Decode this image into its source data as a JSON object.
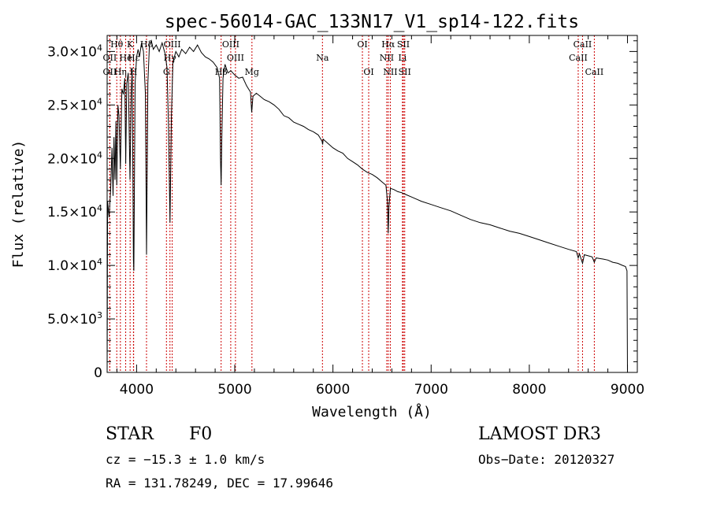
{
  "chart_data": {
    "type": "line",
    "title": "spec-56014-GAC_133N17_V1_sp14-122.fits",
    "xlabel": "Wavelength (Å)",
    "ylabel": "Flux (relative)",
    "xlim": [
      3700,
      9100
    ],
    "ylim": [
      0,
      31500
    ],
    "x_ticks": [
      {
        "value": 4000,
        "label": "4000"
      },
      {
        "value": 5000,
        "label": "5000"
      },
      {
        "value": 6000,
        "label": "6000"
      },
      {
        "value": 7000,
        "label": "7000"
      },
      {
        "value": 8000,
        "label": "8000"
      },
      {
        "value": 9000,
        "label": "9000"
      }
    ],
    "y_ticks": [
      {
        "value": 0,
        "mant": "0",
        "exp": ""
      },
      {
        "value": 5000,
        "mant": "5.0×10",
        "exp": "3"
      },
      {
        "value": 10000,
        "mant": "1.0×10",
        "exp": "4"
      },
      {
        "value": 15000,
        "mant": "1.5×10",
        "exp": "4"
      },
      {
        "value": 20000,
        "mant": "2.0×10",
        "exp": "4"
      },
      {
        "value": 25000,
        "mant": "2.5×10",
        "exp": "4"
      },
      {
        "value": 30000,
        "mant": "3.0×10",
        "exp": "4"
      }
    ],
    "series": [
      {
        "name": "spectrum",
        "color": "#000000",
        "points": [
          [
            3700,
            0
          ],
          [
            3705,
            16000
          ],
          [
            3720,
            14500
          ],
          [
            3735,
            17000
          ],
          [
            3750,
            21000
          ],
          [
            3760,
            16500
          ],
          [
            3770,
            22000
          ],
          [
            3780,
            18000
          ],
          [
            3790,
            23500
          ],
          [
            3798,
            17500
          ],
          [
            3810,
            25000
          ],
          [
            3820,
            24000
          ],
          [
            3835,
            19000
          ],
          [
            3850,
            26500
          ],
          [
            3865,
            26000
          ],
          [
            3880,
            27500
          ],
          [
            3889,
            19500
          ],
          [
            3900,
            27000
          ],
          [
            3915,
            28000
          ],
          [
            3933,
            18000
          ],
          [
            3945,
            26000
          ],
          [
            3955,
            28500
          ],
          [
            3968,
            10500
          ],
          [
            3972,
            9500
          ],
          [
            3985,
            27000
          ],
          [
            4000,
            29500
          ],
          [
            4015,
            30200
          ],
          [
            4030,
            29500
          ],
          [
            4050,
            30800
          ],
          [
            4070,
            30000
          ],
          [
            4090,
            26000
          ],
          [
            4101,
            11000
          ],
          [
            4115,
            27000
          ],
          [
            4130,
            30500
          ],
          [
            4150,
            31000
          ],
          [
            4170,
            30200
          ],
          [
            4200,
            30600
          ],
          [
            4230,
            30000
          ],
          [
            4260,
            30800
          ],
          [
            4290,
            29800
          ],
          [
            4310,
            28500
          ],
          [
            4325,
            23000
          ],
          [
            4340,
            14000
          ],
          [
            4355,
            24000
          ],
          [
            4370,
            29000
          ],
          [
            4400,
            30000
          ],
          [
            4430,
            29500
          ],
          [
            4460,
            30200
          ],
          [
            4500,
            29800
          ],
          [
            4540,
            30400
          ],
          [
            4580,
            30000
          ],
          [
            4620,
            30600
          ],
          [
            4660,
            29900
          ],
          [
            4700,
            29500
          ],
          [
            4740,
            29300
          ],
          [
            4780,
            29000
          ],
          [
            4820,
            28500
          ],
          [
            4845,
            27500
          ],
          [
            4855,
            20000
          ],
          [
            4861,
            17500
          ],
          [
            4868,
            22000
          ],
          [
            4880,
            27500
          ],
          [
            4900,
            28800
          ],
          [
            4930,
            28000
          ],
          [
            4960,
            28200
          ],
          [
            5000,
            27800
          ],
          [
            5040,
            27500
          ],
          [
            5080,
            27600
          ],
          [
            5120,
            26800
          ],
          [
            5160,
            26200
          ],
          [
            5172,
            24300
          ],
          [
            5185,
            25800
          ],
          [
            5220,
            26100
          ],
          [
            5260,
            25800
          ],
          [
            5300,
            25500
          ],
          [
            5350,
            25300
          ],
          [
            5400,
            25000
          ],
          [
            5450,
            24600
          ],
          [
            5500,
            24000
          ],
          [
            5550,
            23800
          ],
          [
            5600,
            23400
          ],
          [
            5650,
            23200
          ],
          [
            5700,
            23000
          ],
          [
            5750,
            22700
          ],
          [
            5800,
            22500
          ],
          [
            5850,
            22200
          ],
          [
            5890,
            21600
          ],
          [
            5895,
            21300
          ],
          [
            5900,
            21800
          ],
          [
            5950,
            21400
          ],
          [
            6000,
            21000
          ],
          [
            6050,
            20700
          ],
          [
            6100,
            20500
          ],
          [
            6150,
            20000
          ],
          [
            6200,
            19700
          ],
          [
            6250,
            19400
          ],
          [
            6300,
            19000
          ],
          [
            6350,
            18700
          ],
          [
            6400,
            18500
          ],
          [
            6450,
            18200
          ],
          [
            6500,
            17800
          ],
          [
            6540,
            17500
          ],
          [
            6555,
            16000
          ],
          [
            6563,
            13000
          ],
          [
            6570,
            15500
          ],
          [
            6585,
            17200
          ],
          [
            6620,
            17100
          ],
          [
            6660,
            16900
          ],
          [
            6700,
            16800
          ],
          [
            6750,
            16600
          ],
          [
            6800,
            16400
          ],
          [
            6900,
            16000
          ],
          [
            7000,
            15700
          ],
          [
            7100,
            15400
          ],
          [
            7200,
            15100
          ],
          [
            7300,
            14700
          ],
          [
            7400,
            14300
          ],
          [
            7500,
            14000
          ],
          [
            7600,
            13800
          ],
          [
            7700,
            13500
          ],
          [
            7800,
            13200
          ],
          [
            7900,
            13000
          ],
          [
            8000,
            12700
          ],
          [
            8100,
            12400
          ],
          [
            8200,
            12100
          ],
          [
            8300,
            11800
          ],
          [
            8400,
            11500
          ],
          [
            8480,
            11300
          ],
          [
            8498,
            10700
          ],
          [
            8510,
            11100
          ],
          [
            8542,
            10200
          ],
          [
            8560,
            11000
          ],
          [
            8600,
            10900
          ],
          [
            8640,
            10800
          ],
          [
            8662,
            10300
          ],
          [
            8680,
            10700
          ],
          [
            8750,
            10600
          ],
          [
            8800,
            10500
          ],
          [
            8850,
            10300
          ],
          [
            8900,
            10200
          ],
          [
            8950,
            10000
          ],
          [
            8980,
            9900
          ],
          [
            8995,
            9500
          ],
          [
            9000,
            0
          ]
        ]
      }
    ],
    "line_color": "#cc0000",
    "lines": [
      {
        "label": "Hθ",
        "x": 3798,
        "row": 0
      },
      {
        "label": "OII",
        "x": 3727,
        "row": 1
      },
      {
        "label": "OII",
        "x": 3727,
        "row": 2
      },
      {
        "label": "Hη",
        "x": 3835,
        "row": 2
      },
      {
        "label": "K",
        "x": 3934,
        "row": 0
      },
      {
        "label": "He",
        "x": 3889,
        "row": 1
      },
      {
        "label": "H",
        "x": 3968,
        "row": 2
      },
      {
        "label": "Hε",
        "x": 3970,
        "row": 1
      },
      {
        "label": "Hδ",
        "x": 4101,
        "row": 0
      },
      {
        "label": "Hγ",
        "x": 4340,
        "row": 1
      },
      {
        "label": "G",
        "x": 4304,
        "row": 2
      },
      {
        "label": "OIII",
        "x": 4363,
        "row": 0
      },
      {
        "label": "Hβ",
        "x": 4861,
        "row": 2
      },
      {
        "label": "OIII",
        "x": 4959,
        "row": 0
      },
      {
        "label": "OIII",
        "x": 5007,
        "row": 1
      },
      {
        "label": "Mg",
        "x": 5175,
        "row": 2
      },
      {
        "label": "Na",
        "x": 5893,
        "row": 1
      },
      {
        "label": "OI",
        "x": 6300,
        "row": 0
      },
      {
        "label": "OI",
        "x": 6364,
        "row": 2
      },
      {
        "label": "Hα",
        "x": 6563,
        "row": 0
      },
      {
        "label": "NII",
        "x": 6548,
        "row": 1
      },
      {
        "label": "NII",
        "x": 6584,
        "row": 2
      },
      {
        "label": "SII",
        "x": 6717,
        "row": 0
      },
      {
        "label": "Li",
        "x": 6708,
        "row": 1
      },
      {
        "label": "SII",
        "x": 6731,
        "row": 2
      },
      {
        "label": "CaII",
        "x": 8542,
        "row": 0
      },
      {
        "label": "CaII",
        "x": 8498,
        "row": 1
      },
      {
        "label": "CaII",
        "x": 8662,
        "row": 2
      }
    ]
  },
  "info": {
    "class_label": "STAR",
    "subclass": "F0",
    "survey": "LAMOST DR3",
    "cz": "cz = −15.3 ± 1.0 km/s",
    "obs_date": "Obs−Date: 20120327",
    "coords": "RA = 131.78249, DEC =  17.99646"
  }
}
